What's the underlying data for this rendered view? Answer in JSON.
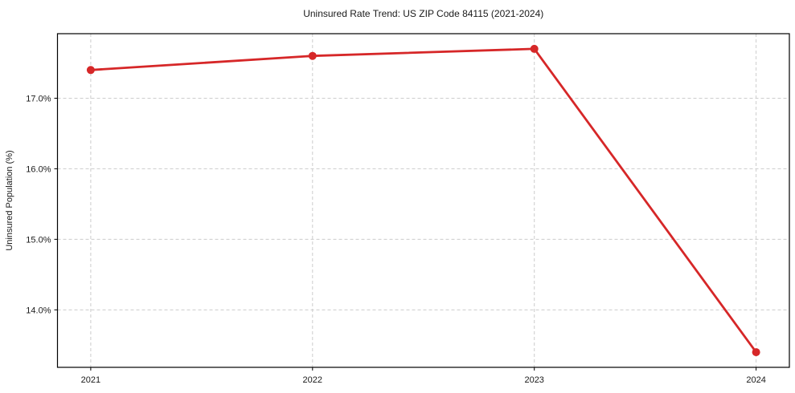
{
  "figure": {
    "title": "Uninsured Rate Trend: US ZIP Code 84115 (2021-2024)"
  },
  "chart_data": {
    "type": "line",
    "title": "Uninsured Rate Trend: US ZIP Code 84115 (2021-2024)",
    "xlabel": "",
    "ylabel": "Uninsured Population (%)",
    "categories": [
      "2021",
      "2022",
      "2023",
      "2024"
    ],
    "series": [
      {
        "name": "Uninsured Population (%)",
        "values": [
          17.4,
          17.6,
          17.7,
          13.4
        ]
      }
    ],
    "y_ticks": [
      14.0,
      15.0,
      16.0,
      17.0
    ],
    "y_tick_labels": [
      "14.0%",
      "15.0%",
      "16.0%",
      "17.0%"
    ],
    "ylim": [
      13.185,
      17.915
    ],
    "grid": true,
    "grid_style": "dashed",
    "legend_position": "none",
    "marker": "circle",
    "colors": {
      "line": "#d62728",
      "marker": "#d62728",
      "grid": "#cccccc",
      "axis": "#000000",
      "text": "#1a1a1a",
      "background": "#ffffff"
    }
  }
}
